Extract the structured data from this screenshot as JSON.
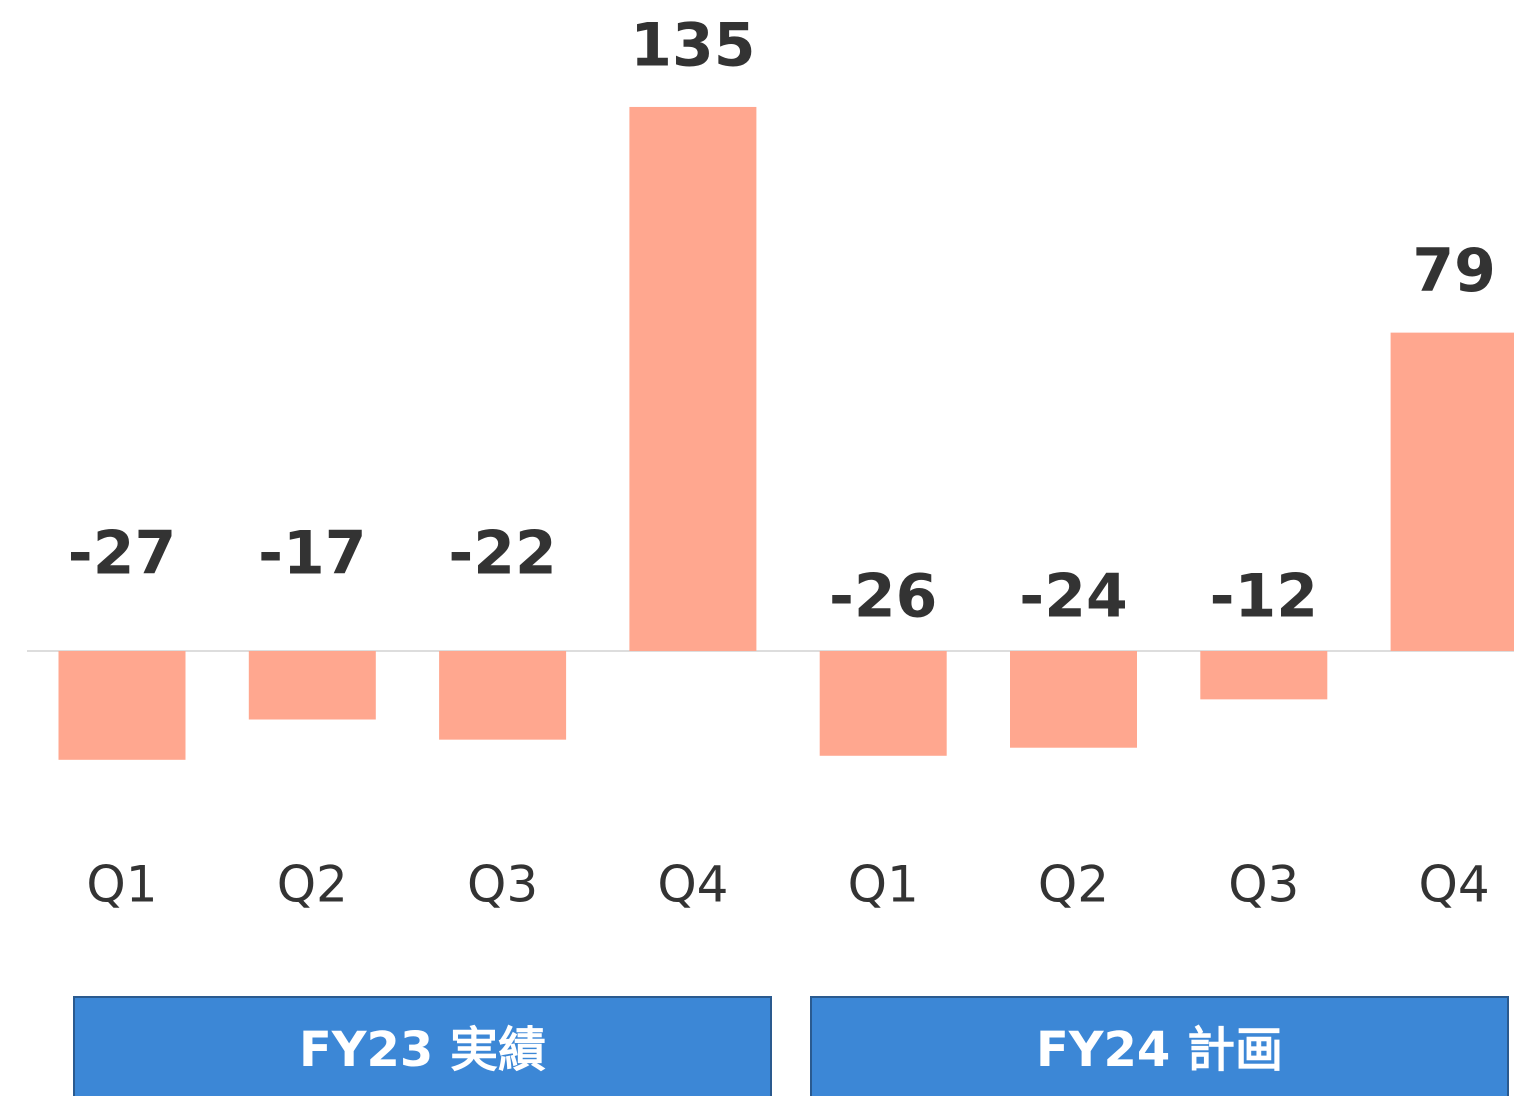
{
  "chart_data": {
    "type": "bar",
    "categories": [
      "Q1",
      "Q2",
      "Q3",
      "Q4",
      "Q1",
      "Q2",
      "Q3",
      "Q4"
    ],
    "values": [
      -27,
      -17,
      -22,
      135,
      -26,
      -24,
      -12,
      79
    ],
    "color": "#ffa78f",
    "group_labels": [
      "FY23 実績",
      "FY24 計画"
    ]
  }
}
